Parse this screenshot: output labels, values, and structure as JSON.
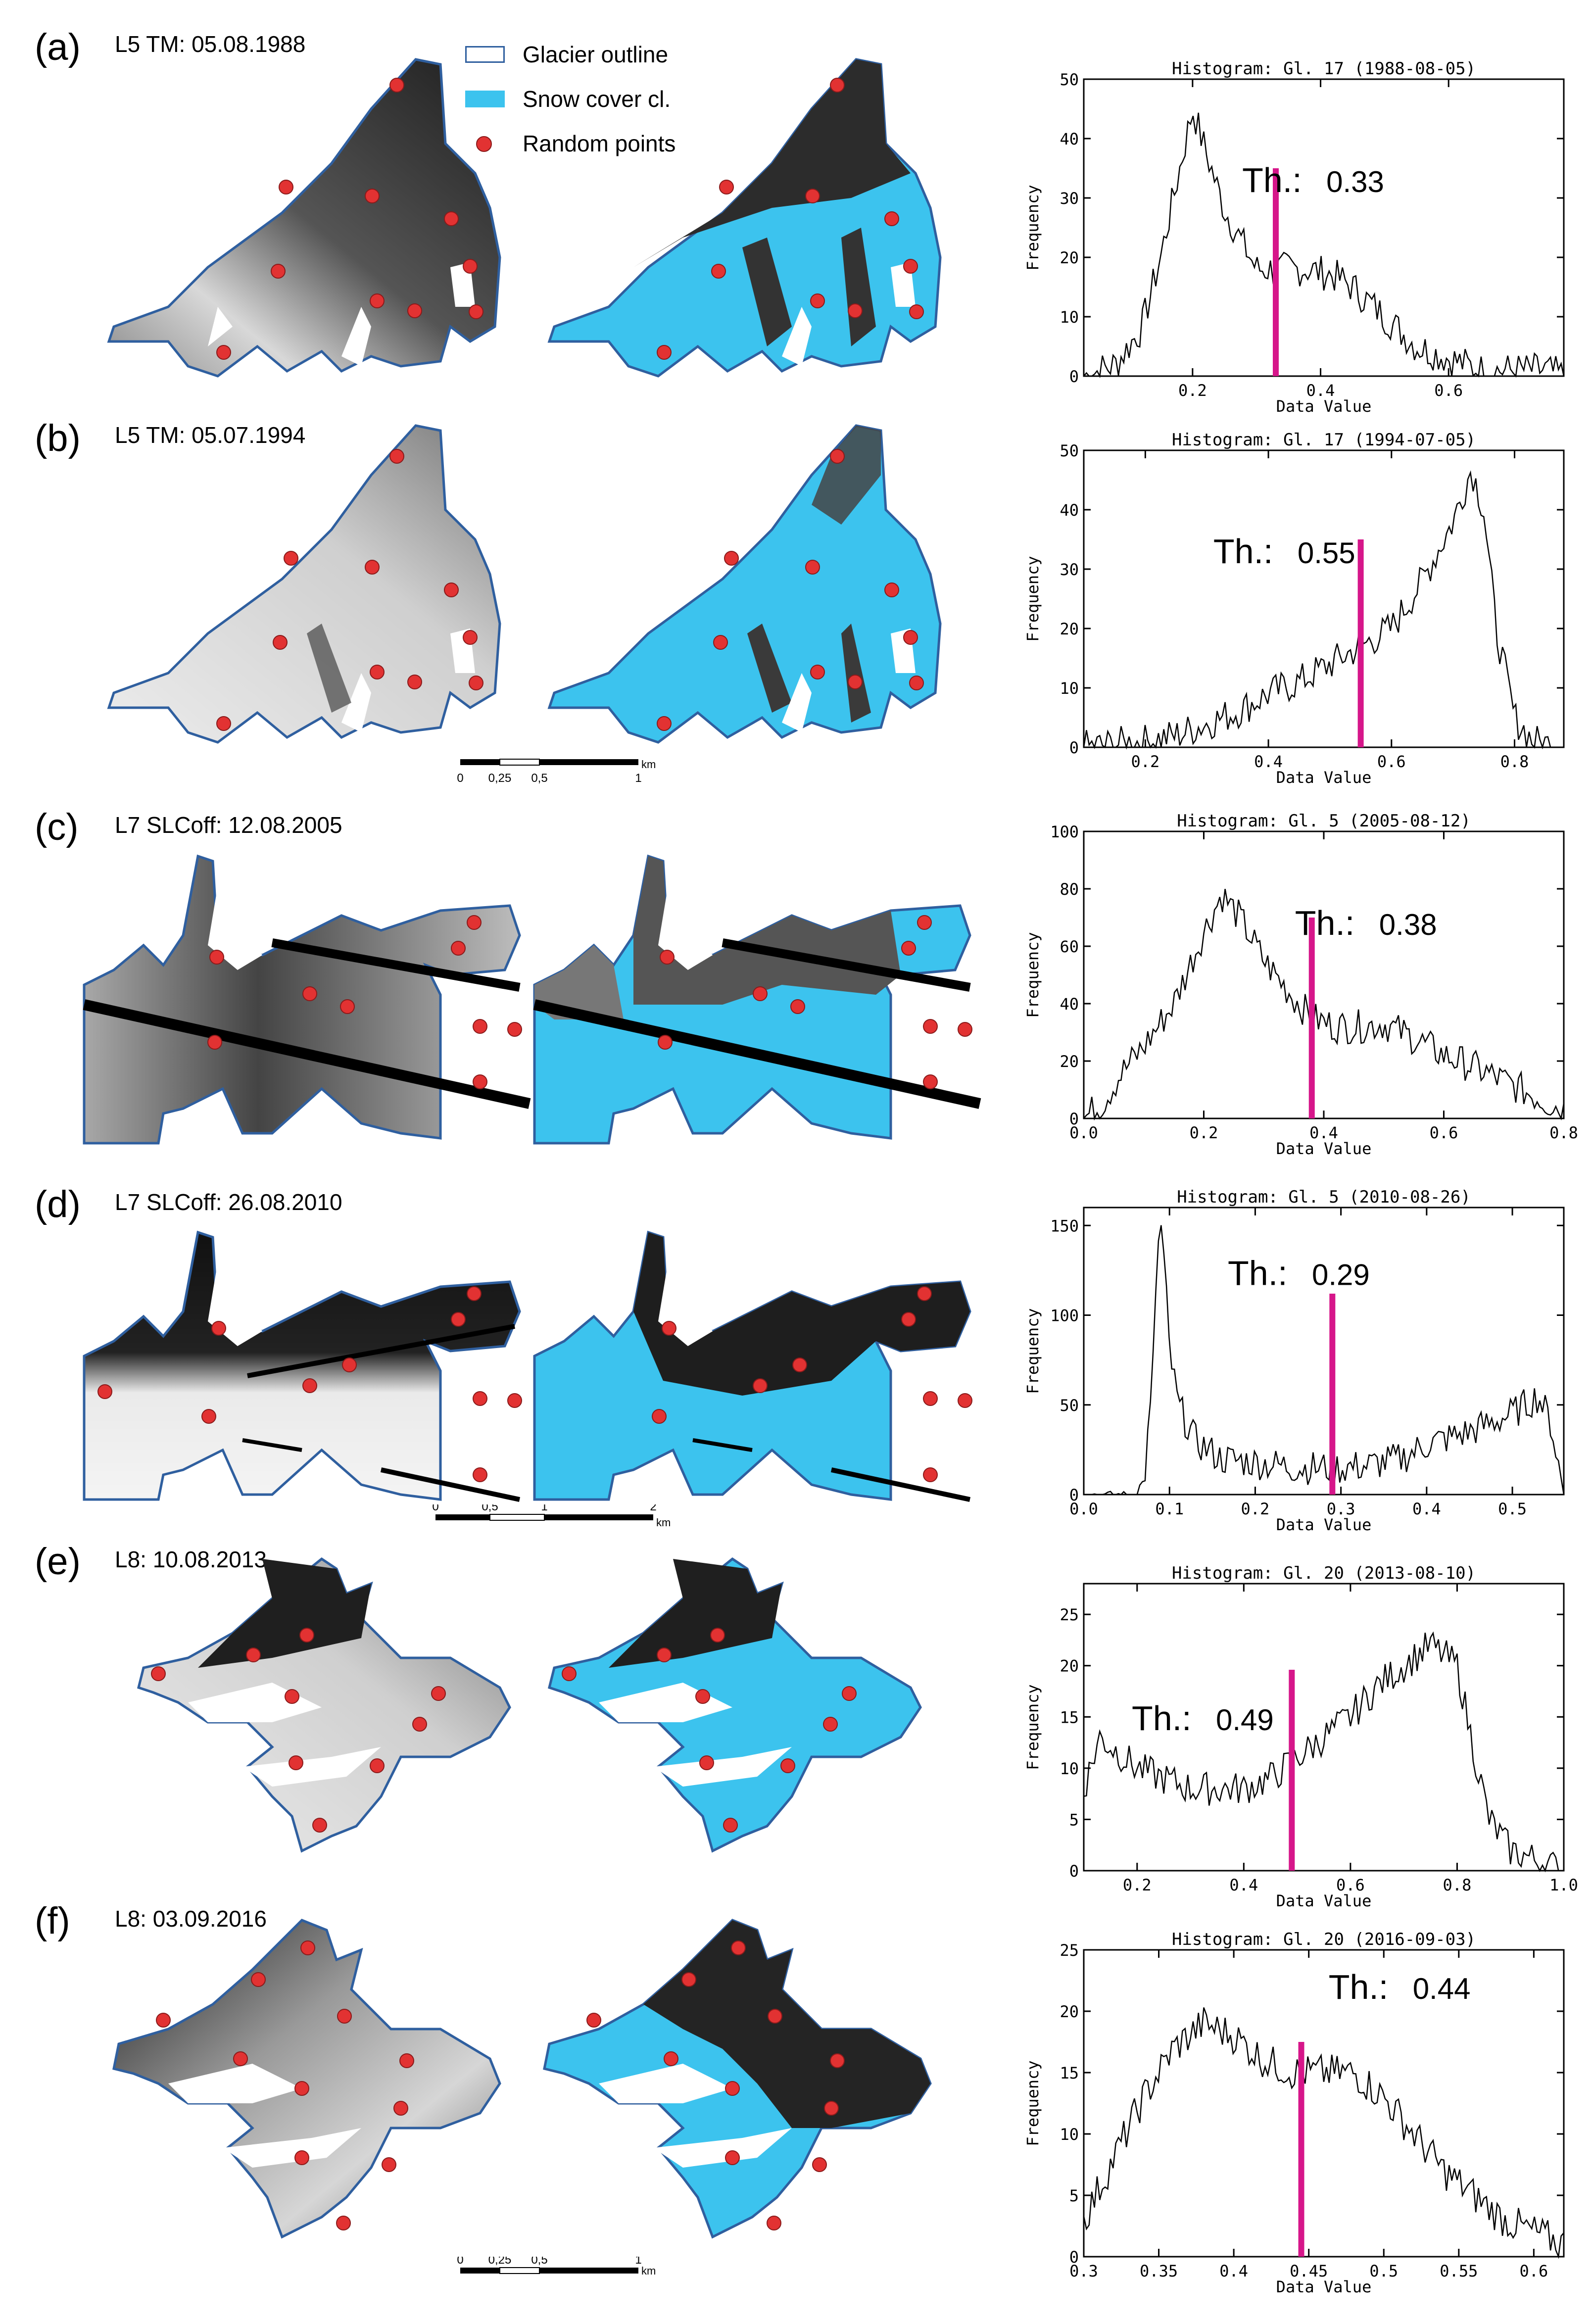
{
  "legend": {
    "glacier_outline": "Glacier outline",
    "snow_cover": "Snow cover cl.",
    "random_points": "Random points"
  },
  "colors": {
    "outline": "#2f5f9f",
    "snow": "#3cc3ee",
    "points": "#e23232",
    "threshold": "#d6168a"
  },
  "panels": [
    {
      "label": "(a)",
      "sensor": "L5 TM: 05.08.1988"
    },
    {
      "label": "(b)",
      "sensor": "L5 TM: 05.07.1994"
    },
    {
      "label": "(c)",
      "sensor": "L7 SLCoff: 12.08.2005"
    },
    {
      "label": "(d)",
      "sensor": "L7 SLCoff: 26.08.2010"
    },
    {
      "label": "(e)",
      "sensor": "L8: 10.08.2013"
    },
    {
      "label": "(f)",
      "sensor": "L8: 03.09.2016"
    }
  ],
  "scalebars": [
    {
      "ticks": [
        "0",
        "0,25",
        "0,5",
        "1"
      ],
      "unit": "km"
    },
    {
      "ticks": [
        "0",
        "0,5",
        "1",
        "2"
      ],
      "unit": "km"
    },
    {
      "ticks": [
        "0",
        "0,25",
        "0,5",
        "1"
      ],
      "unit": "km"
    }
  ],
  "chart_data": [
    {
      "type": "line",
      "title": "Histogram: Gl. 17 (1988-08-05)",
      "xlabel": "Data Value",
      "ylabel": "Frequency",
      "xlim": [
        0.03,
        0.78
      ],
      "ylim": [
        0,
        50
      ],
      "xticks": [
        0.2,
        0.4,
        0.6
      ],
      "yticks": [
        0,
        10,
        20,
        30,
        40,
        50
      ],
      "threshold_label": "Th.:",
      "threshold": 0.33,
      "threshold_text": "0.33",
      "series_profile": [
        [
          0.03,
          0
        ],
        [
          0.08,
          2
        ],
        [
          0.12,
          8
        ],
        [
          0.15,
          20
        ],
        [
          0.18,
          35
        ],
        [
          0.2,
          45
        ],
        [
          0.22,
          38
        ],
        [
          0.25,
          28
        ],
        [
          0.28,
          22
        ],
        [
          0.3,
          18
        ],
        [
          0.33,
          18
        ],
        [
          0.38,
          18
        ],
        [
          0.42,
          17
        ],
        [
          0.45,
          15
        ],
        [
          0.5,
          10
        ],
        [
          0.55,
          5
        ],
        [
          0.6,
          3
        ],
        [
          0.65,
          1
        ],
        [
          0.7,
          1
        ],
        [
          0.75,
          1
        ],
        [
          0.78,
          0
        ]
      ]
    },
    {
      "type": "line",
      "title": "Histogram: Gl. 17 (1994-07-05)",
      "xlabel": "Data Value",
      "ylabel": "Frequency",
      "xlim": [
        0.1,
        0.88
      ],
      "ylim": [
        0,
        50
      ],
      "xticks": [
        0.2,
        0.4,
        0.6,
        0.8
      ],
      "yticks": [
        0,
        10,
        20,
        30,
        40,
        50
      ],
      "threshold_label": "Th.:",
      "threshold": 0.55,
      "threshold_text": "0.55",
      "series_profile": [
        [
          0.1,
          0
        ],
        [
          0.2,
          1
        ],
        [
          0.25,
          2
        ],
        [
          0.3,
          4
        ],
        [
          0.35,
          6
        ],
        [
          0.4,
          9
        ],
        [
          0.45,
          11
        ],
        [
          0.5,
          14
        ],
        [
          0.55,
          17
        ],
        [
          0.6,
          20
        ],
        [
          0.65,
          28
        ],
        [
          0.7,
          38
        ],
        [
          0.73,
          47
        ],
        [
          0.75,
          40
        ],
        [
          0.77,
          20
        ],
        [
          0.8,
          5
        ],
        [
          0.83,
          1
        ],
        [
          0.88,
          0
        ]
      ]
    },
    {
      "type": "line",
      "title": "Histogram: Gl. 5 (2005-08-12)",
      "xlabel": "Data Value",
      "ylabel": "Frequency",
      "xlim": [
        0.0,
        0.8
      ],
      "ylim": [
        0,
        100
      ],
      "xticks": [
        0.0,
        0.2,
        0.4,
        0.6,
        0.8
      ],
      "yticks": [
        0,
        20,
        40,
        60,
        80,
        100
      ],
      "threshold_label": "Th.:",
      "threshold": 0.38,
      "threshold_text": "0.38",
      "series_profile": [
        [
          0.0,
          0
        ],
        [
          0.03,
          5
        ],
        [
          0.06,
          15
        ],
        [
          0.1,
          25
        ],
        [
          0.15,
          40
        ],
        [
          0.2,
          65
        ],
        [
          0.23,
          78
        ],
        [
          0.26,
          70
        ],
        [
          0.3,
          55
        ],
        [
          0.35,
          42
        ],
        [
          0.38,
          35
        ],
        [
          0.42,
          32
        ],
        [
          0.46,
          32
        ],
        [
          0.5,
          33
        ],
        [
          0.55,
          28
        ],
        [
          0.6,
          22
        ],
        [
          0.65,
          18
        ],
        [
          0.7,
          13
        ],
        [
          0.75,
          8
        ],
        [
          0.8,
          3
        ]
      ]
    },
    {
      "type": "line",
      "title": "Histogram: Gl. 5 (2010-08-26)",
      "xlabel": "Data Value",
      "ylabel": "Frequency",
      "xlim": [
        0.0,
        0.56
      ],
      "ylim": [
        0,
        160
      ],
      "xticks": [
        0.0,
        0.1,
        0.2,
        0.3,
        0.4,
        0.5
      ],
      "yticks": [
        0,
        50,
        100,
        150
      ],
      "threshold_label": "Th.:",
      "threshold": 0.29,
      "threshold_text": "0.29",
      "series_profile": [
        [
          0.0,
          0
        ],
        [
          0.06,
          0
        ],
        [
          0.07,
          5
        ],
        [
          0.08,
          60
        ],
        [
          0.085,
          130
        ],
        [
          0.09,
          150
        ],
        [
          0.095,
          120
        ],
        [
          0.1,
          80
        ],
        [
          0.11,
          50
        ],
        [
          0.13,
          30
        ],
        [
          0.16,
          20
        ],
        [
          0.2,
          18
        ],
        [
          0.25,
          15
        ],
        [
          0.3,
          15
        ],
        [
          0.33,
          16
        ],
        [
          0.37,
          20
        ],
        [
          0.4,
          28
        ],
        [
          0.45,
          35
        ],
        [
          0.5,
          45
        ],
        [
          0.53,
          55
        ],
        [
          0.545,
          40
        ],
        [
          0.56,
          0
        ]
      ]
    },
    {
      "type": "line",
      "title": "Histogram: Gl. 20 (2013-08-10)",
      "xlabel": "Data Value",
      "ylabel": "Frequency",
      "xlim": [
        0.1,
        1.0
      ],
      "ylim": [
        0,
        28
      ],
      "xticks": [
        0.2,
        0.4,
        0.6,
        0.8,
        1.0
      ],
      "yticks": [
        0,
        5,
        10,
        15,
        20,
        25
      ],
      "threshold_label": "Th.:",
      "threshold": 0.49,
      "threshold_text": "0.49",
      "series_profile": [
        [
          0.1,
          8
        ],
        [
          0.13,
          13
        ],
        [
          0.2,
          10
        ],
        [
          0.3,
          8
        ],
        [
          0.4,
          8
        ],
        [
          0.45,
          9
        ],
        [
          0.5,
          11
        ],
        [
          0.55,
          13
        ],
        [
          0.6,
          15
        ],
        [
          0.65,
          18
        ],
        [
          0.7,
          20
        ],
        [
          0.75,
          22
        ],
        [
          0.8,
          20
        ],
        [
          0.83,
          12
        ],
        [
          0.86,
          5
        ],
        [
          0.9,
          2
        ],
        [
          0.95,
          1
        ],
        [
          1.0,
          0
        ]
      ]
    },
    {
      "type": "line",
      "title": "Histogram: Gl. 20 (2016-09-03)",
      "xlabel": "Data Value",
      "ylabel": "Frequency",
      "xlim": [
        0.3,
        0.62
      ],
      "ylim": [
        0,
        25
      ],
      "xticks": [
        0.3,
        0.35,
        0.4,
        0.45,
        0.5,
        0.55,
        0.6
      ],
      "yticks": [
        0,
        5,
        10,
        15,
        20,
        25
      ],
      "threshold_label": "Th.:",
      "threshold": 0.445,
      "threshold_text": "0.44",
      "series_profile": [
        [
          0.3,
          3
        ],
        [
          0.32,
          8
        ],
        [
          0.34,
          13
        ],
        [
          0.36,
          17
        ],
        [
          0.38,
          19
        ],
        [
          0.4,
          18
        ],
        [
          0.42,
          16
        ],
        [
          0.44,
          15
        ],
        [
          0.46,
          15
        ],
        [
          0.48,
          15
        ],
        [
          0.5,
          13
        ],
        [
          0.52,
          10
        ],
        [
          0.54,
          7
        ],
        [
          0.56,
          5
        ],
        [
          0.58,
          3
        ],
        [
          0.6,
          2
        ],
        [
          0.62,
          1
        ]
      ]
    }
  ]
}
